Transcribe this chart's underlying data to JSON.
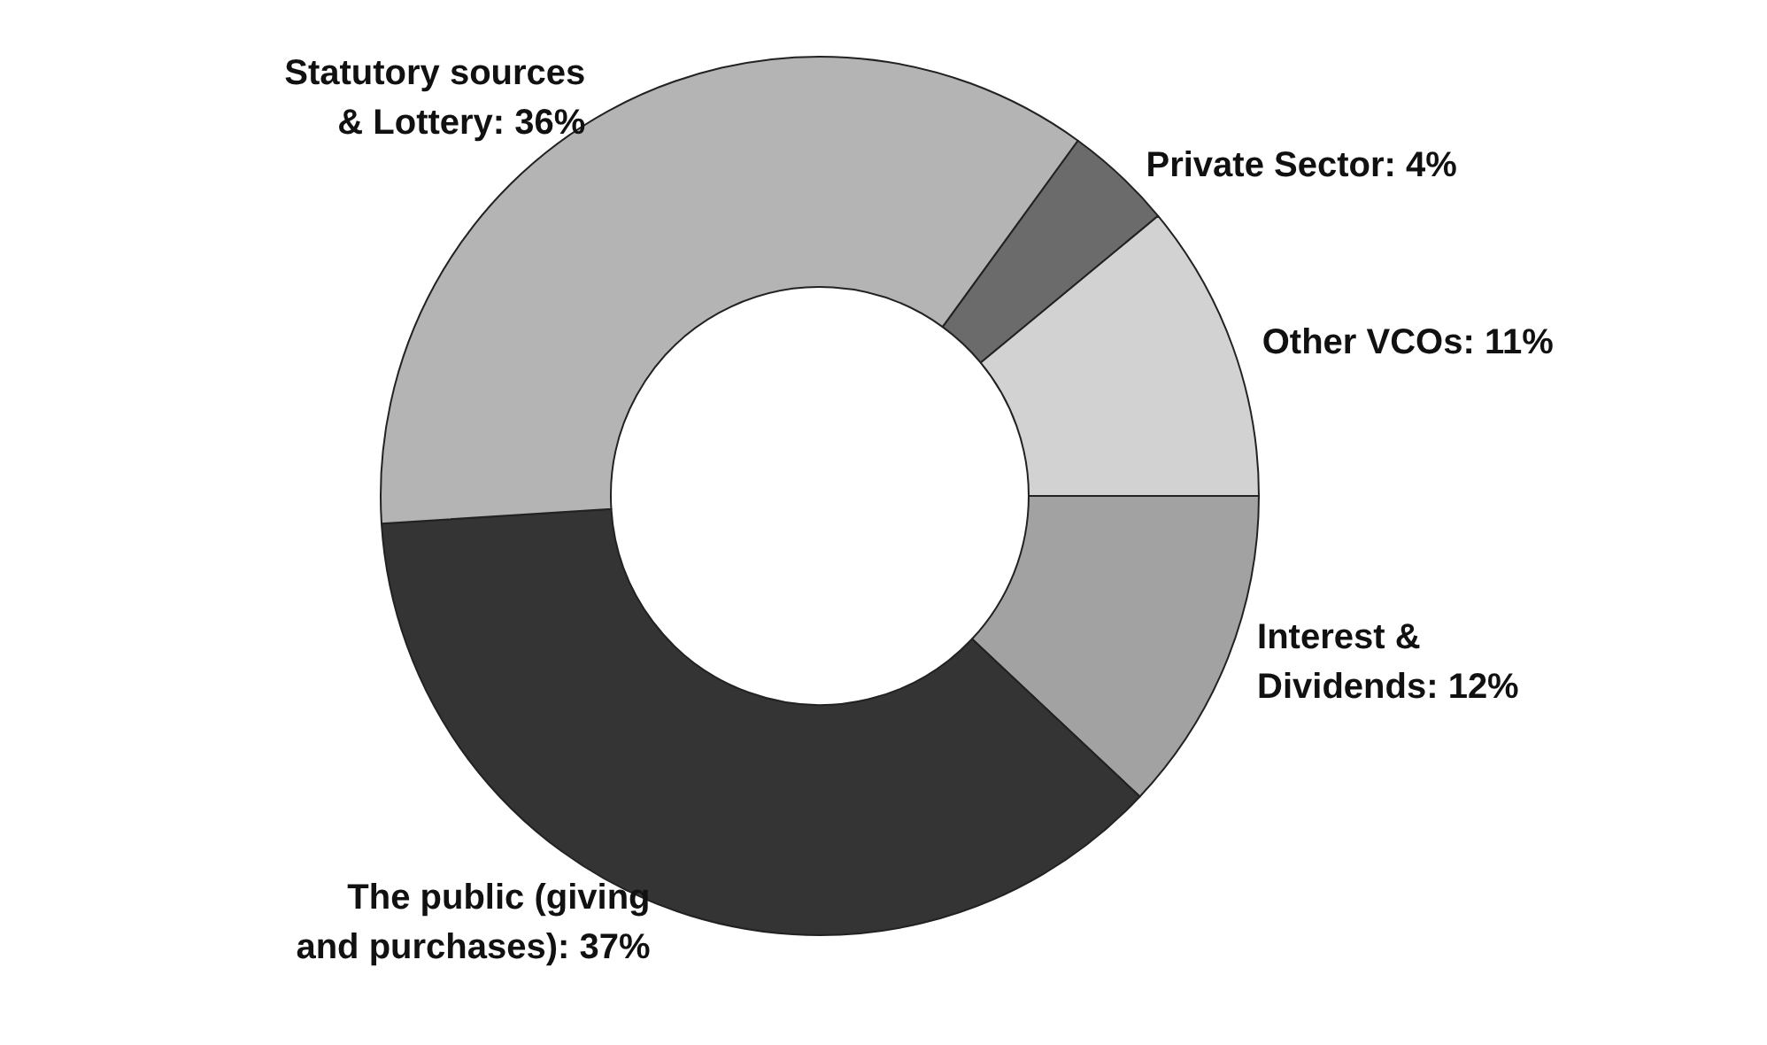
{
  "chart_data": {
    "type": "donut",
    "categories": [
      "Private Sector",
      "Other VCOs",
      "Interest &\nDividends",
      "The public (giving\nand purchases)",
      "Statutory sources\n& Lottery"
    ],
    "values": [
      4,
      11,
      12,
      37,
      36
    ],
    "value_labels": [
      "4%",
      "11%",
      "12%",
      "37%",
      "36%"
    ],
    "colors": [
      "#6b6b6b",
      "#d2d2d2",
      "#a2a2a2",
      "#343434",
      "#b4b4b4"
    ],
    "legend": false
  }
}
